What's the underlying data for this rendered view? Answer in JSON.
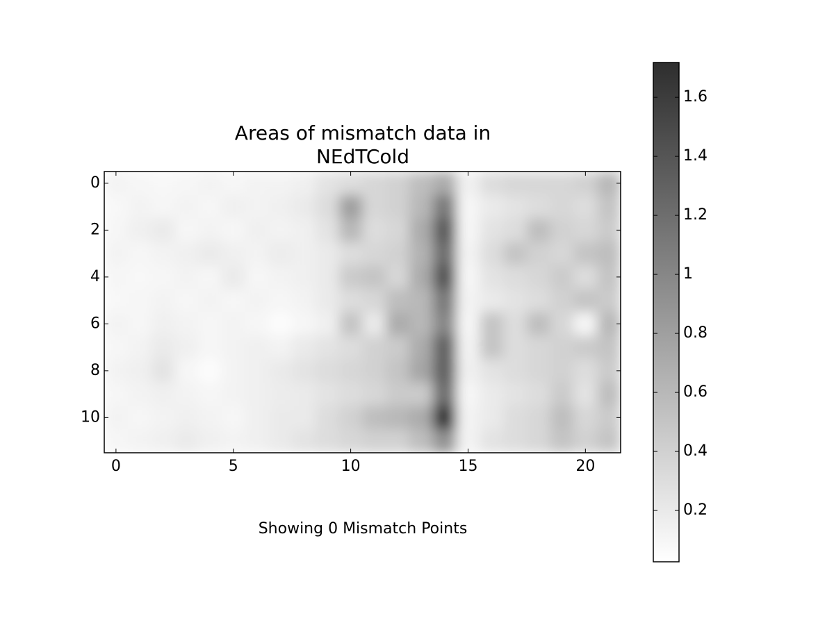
{
  "chart_data": {
    "type": "heatmap",
    "title_lines": [
      "Areas of mismatch data in",
      "NEdTCold"
    ],
    "annotation": "Showing 0 Mismatch Points",
    "xlim": [
      -0.5,
      21.5
    ],
    "ylim": [
      11.5,
      -0.5
    ],
    "xticks": [
      0,
      5,
      10,
      15,
      20
    ],
    "yticks": [
      0,
      2,
      4,
      6,
      8,
      10
    ],
    "clim": [
      0.026,
      1.718
    ],
    "cticks": [
      0.2,
      0.4,
      0.6,
      0.8,
      1,
      1.2,
      1.4,
      1.6
    ],
    "colormap": [
      "#ffffff",
      "#2e2e2e"
    ],
    "values": [
      [
        0.12,
        0.1,
        0.08,
        0.1,
        0.12,
        0.1,
        0.12,
        0.12,
        0.15,
        0.25,
        0.3,
        0.35,
        0.4,
        0.55,
        0.7,
        0.15,
        0.3,
        0.35,
        0.35,
        0.35,
        0.4,
        0.6
      ],
      [
        0.08,
        0.12,
        0.1,
        0.12,
        0.1,
        0.15,
        0.12,
        0.15,
        0.2,
        0.3,
        0.8,
        0.35,
        0.4,
        0.6,
        1.1,
        0.1,
        0.2,
        0.25,
        0.3,
        0.35,
        0.3,
        0.5
      ],
      [
        0.1,
        0.15,
        0.2,
        0.1,
        0.12,
        0.1,
        0.15,
        0.12,
        0.15,
        0.25,
        0.6,
        0.3,
        0.35,
        0.7,
        1.35,
        0.1,
        0.25,
        0.3,
        0.55,
        0.4,
        0.35,
        0.45
      ],
      [
        0.12,
        0.1,
        0.12,
        0.15,
        0.2,
        0.15,
        0.12,
        0.18,
        0.15,
        0.2,
        0.3,
        0.35,
        0.4,
        0.65,
        1.2,
        0.12,
        0.3,
        0.5,
        0.4,
        0.35,
        0.5,
        0.55
      ],
      [
        0.1,
        0.08,
        0.1,
        0.12,
        0.1,
        0.2,
        0.1,
        0.12,
        0.15,
        0.2,
        0.45,
        0.5,
        0.35,
        0.7,
        1.4,
        0.1,
        0.25,
        0.3,
        0.35,
        0.45,
        0.3,
        0.5
      ],
      [
        0.08,
        0.1,
        0.12,
        0.1,
        0.12,
        0.1,
        0.12,
        0.1,
        0.12,
        0.2,
        0.3,
        0.35,
        0.55,
        0.6,
        1.1,
        0.12,
        0.2,
        0.25,
        0.3,
        0.4,
        0.5,
        0.45
      ],
      [
        0.12,
        0.1,
        0.15,
        0.12,
        0.1,
        0.12,
        0.1,
        0.05,
        0.1,
        0.15,
        0.5,
        0.2,
        0.7,
        0.6,
        1.0,
        0.1,
        0.5,
        0.3,
        0.55,
        0.35,
        0.1,
        0.6
      ],
      [
        0.1,
        0.12,
        0.2,
        0.15,
        0.1,
        0.12,
        0.15,
        0.12,
        0.2,
        0.25,
        0.3,
        0.4,
        0.45,
        0.7,
        1.3,
        0.12,
        0.5,
        0.3,
        0.35,
        0.4,
        0.45,
        0.5
      ],
      [
        0.12,
        0.15,
        0.25,
        0.1,
        0.05,
        0.12,
        0.15,
        0.2,
        0.25,
        0.3,
        0.35,
        0.4,
        0.5,
        0.75,
        1.3,
        0.15,
        0.25,
        0.3,
        0.35,
        0.4,
        0.3,
        0.45
      ],
      [
        0.1,
        0.12,
        0.15,
        0.12,
        0.1,
        0.12,
        0.15,
        0.18,
        0.2,
        0.25,
        0.3,
        0.35,
        0.45,
        0.45,
        1.2,
        0.1,
        0.2,
        0.25,
        0.3,
        0.45,
        0.25,
        0.55
      ],
      [
        0.12,
        0.1,
        0.12,
        0.15,
        0.12,
        0.1,
        0.15,
        0.2,
        0.2,
        0.3,
        0.4,
        0.55,
        0.6,
        0.7,
        1.65,
        0.12,
        0.2,
        0.3,
        0.35,
        0.55,
        0.35,
        0.45
      ],
      [
        0.1,
        0.12,
        0.15,
        0.2,
        0.15,
        0.12,
        0.15,
        0.2,
        0.25,
        0.3,
        0.35,
        0.4,
        0.4,
        0.55,
        0.9,
        0.12,
        0.25,
        0.3,
        0.35,
        0.5,
        0.4,
        0.5
      ]
    ]
  }
}
